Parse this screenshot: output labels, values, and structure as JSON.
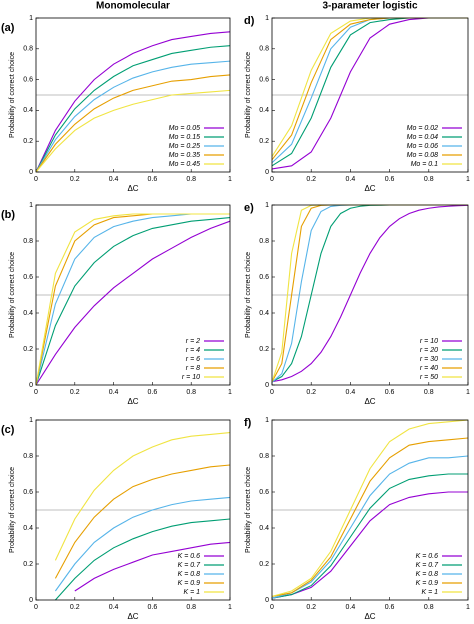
{
  "headers": [
    "Monomolecular",
    "3-parameter logistic"
  ],
  "chart_data": [
    {
      "type": "line",
      "label": "(a)",
      "xlabel": "ΔC",
      "ylabel": "Probability of correct choice",
      "xlim": [
        0,
        1
      ],
      "ylim": [
        0,
        1
      ],
      "xticks": [
        0,
        0.2,
        0.4,
        0.6,
        0.8,
        1
      ],
      "yticks": [
        0,
        0.2,
        0.4,
        0.6,
        0.8,
        1
      ],
      "hline": 0.5,
      "legend": "lower right",
      "x": [
        0,
        0.1,
        0.2,
        0.3,
        0.4,
        0.5,
        0.6,
        0.7,
        0.8,
        0.9,
        1
      ],
      "series": [
        {
          "name": "Mo = 0.05",
          "color": "#9400d3",
          "values": [
            0,
            0.27,
            0.46,
            0.6,
            0.7,
            0.77,
            0.82,
            0.86,
            0.88,
            0.9,
            0.91
          ]
        },
        {
          "name": "Mo = 0.15",
          "color": "#009e73",
          "values": [
            0,
            0.24,
            0.41,
            0.53,
            0.62,
            0.69,
            0.73,
            0.77,
            0.79,
            0.81,
            0.82
          ]
        },
        {
          "name": "Mo = 0.25",
          "color": "#56b4e9",
          "values": [
            0,
            0.21,
            0.36,
            0.47,
            0.55,
            0.61,
            0.65,
            0.68,
            0.7,
            0.71,
            0.72
          ]
        },
        {
          "name": "Mo = 0.35",
          "color": "#e69f00",
          "values": [
            0,
            0.18,
            0.31,
            0.41,
            0.48,
            0.53,
            0.56,
            0.59,
            0.6,
            0.62,
            0.63
          ]
        },
        {
          "name": "Mo = 0.45",
          "color": "#f0e442",
          "values": [
            0,
            0.15,
            0.27,
            0.35,
            0.4,
            0.44,
            0.47,
            0.5,
            0.51,
            0.52,
            0.53
          ]
        }
      ]
    },
    {
      "type": "line",
      "label": "(b)",
      "xlabel": "ΔC",
      "ylabel": "Probability of correct choice",
      "xlim": [
        0,
        1
      ],
      "ylim": [
        0,
        1
      ],
      "xticks": [
        0,
        0.2,
        0.4,
        0.6,
        0.8,
        1
      ],
      "yticks": [
        0,
        0.2,
        0.4,
        0.6,
        0.8,
        1
      ],
      "hline": 0.5,
      "legend": "lower right",
      "x": [
        0,
        0.1,
        0.2,
        0.3,
        0.4,
        0.5,
        0.6,
        0.7,
        0.8,
        0.9,
        1
      ],
      "series": [
        {
          "name": "r = 2",
          "color": "#9400d3",
          "values": [
            0,
            0.17,
            0.32,
            0.44,
            0.54,
            0.62,
            0.7,
            0.76,
            0.82,
            0.87,
            0.91
          ]
        },
        {
          "name": "r = 4",
          "color": "#009e73",
          "values": [
            0,
            0.33,
            0.55,
            0.68,
            0.77,
            0.83,
            0.87,
            0.89,
            0.91,
            0.92,
            0.93
          ]
        },
        {
          "name": "r = 6",
          "color": "#56b4e9",
          "values": [
            0,
            0.45,
            0.7,
            0.82,
            0.88,
            0.91,
            0.93,
            0.94,
            0.95,
            0.95,
            0.95
          ]
        },
        {
          "name": "r = 8",
          "color": "#e69f00",
          "values": [
            0,
            0.55,
            0.8,
            0.89,
            0.93,
            0.94,
            0.95,
            0.95,
            0.95,
            0.95,
            0.95
          ]
        },
        {
          "name": "r = 10",
          "color": "#f0e442",
          "values": [
            0,
            0.62,
            0.85,
            0.92,
            0.94,
            0.95,
            0.95,
            0.95,
            0.95,
            0.95,
            0.95
          ]
        }
      ]
    },
    {
      "type": "line",
      "label": "(c)",
      "xlabel": "ΔC",
      "ylabel": "Probability of correct choice",
      "xlim": [
        0,
        1
      ],
      "ylim": [
        0,
        1
      ],
      "xticks": [
        0,
        0.2,
        0.4,
        0.6,
        0.8,
        1
      ],
      "yticks": [
        0,
        0.2,
        0.4,
        0.6,
        0.8,
        1
      ],
      "hline": 0.5,
      "legend": "lower right",
      "x": [
        0,
        0.1,
        0.2,
        0.3,
        0.4,
        0.5,
        0.6,
        0.7,
        0.8,
        0.9,
        1
      ],
      "series": [
        {
          "name": "K = 0.6",
          "color": "#9400d3",
          "values": [
            null,
            null,
            0.05,
            0.12,
            0.17,
            0.21,
            0.25,
            0.27,
            0.29,
            0.31,
            0.32
          ]
        },
        {
          "name": "K = 0.7",
          "color": "#009e73",
          "values": [
            null,
            0,
            0.12,
            0.22,
            0.29,
            0.34,
            0.38,
            0.41,
            0.43,
            0.44,
            0.45
          ]
        },
        {
          "name": "K = 0.8",
          "color": "#56b4e9",
          "values": [
            null,
            0.05,
            0.2,
            0.32,
            0.4,
            0.46,
            0.5,
            0.53,
            0.55,
            0.56,
            0.57
          ]
        },
        {
          "name": "K = 0.9",
          "color": "#e69f00",
          "values": [
            null,
            0.12,
            0.32,
            0.46,
            0.56,
            0.63,
            0.67,
            0.7,
            0.72,
            0.74,
            0.75
          ]
        },
        {
          "name": "K = 1",
          "color": "#f0e442",
          "values": [
            null,
            0.22,
            0.45,
            0.61,
            0.72,
            0.8,
            0.85,
            0.89,
            0.91,
            0.92,
            0.93
          ]
        }
      ]
    },
    {
      "type": "line",
      "label": "d)",
      "xlabel": "ΔC",
      "ylabel": "Probability of correct choice",
      "xlim": [
        0,
        1
      ],
      "ylim": [
        0,
        1
      ],
      "xticks": [
        0,
        0.2,
        0.4,
        0.6,
        0.8,
        1
      ],
      "yticks": [
        0,
        0.2,
        0.4,
        0.6,
        0.8,
        1
      ],
      "hline": 0.5,
      "legend": "lower right",
      "x": [
        0,
        0.1,
        0.2,
        0.3,
        0.4,
        0.5,
        0.6,
        0.7,
        0.8,
        0.9,
        1
      ],
      "series": [
        {
          "name": "Mo = 0.02",
          "color": "#9400d3",
          "values": [
            0.02,
            0.04,
            0.13,
            0.35,
            0.65,
            0.87,
            0.96,
            0.99,
            1,
            1,
            1
          ]
        },
        {
          "name": "Mo = 0.04",
          "color": "#009e73",
          "values": [
            0.04,
            0.12,
            0.35,
            0.68,
            0.89,
            0.97,
            0.99,
            1,
            1,
            1,
            1
          ]
        },
        {
          "name": "Mo = 0.06",
          "color": "#56b4e9",
          "values": [
            0.06,
            0.18,
            0.48,
            0.8,
            0.94,
            0.99,
            1,
            1,
            1,
            1,
            1
          ]
        },
        {
          "name": "Mo = 0.08",
          "color": "#e69f00",
          "values": [
            0.08,
            0.24,
            0.58,
            0.86,
            0.96,
            0.99,
            1,
            1,
            1,
            1,
            1
          ]
        },
        {
          "name": "Mo = 0.1",
          "color": "#f0e442",
          "values": [
            0.1,
            0.3,
            0.66,
            0.9,
            0.98,
            1,
            1,
            1,
            1,
            1,
            1
          ]
        }
      ]
    },
    {
      "type": "line",
      "label": "e)",
      "xlabel": "ΔC",
      "ylabel": "Probability of correct choice",
      "xlim": [
        0,
        1
      ],
      "ylim": [
        0,
        1
      ],
      "xticks": [
        0,
        0.2,
        0.4,
        0.6,
        0.8,
        1
      ],
      "yticks": [
        0,
        0.2,
        0.4,
        0.6,
        0.8,
        1
      ],
      "hline": 0.5,
      "legend": "lower right",
      "x": [
        0,
        0.05,
        0.1,
        0.15,
        0.2,
        0.25,
        0.3,
        0.35,
        0.4,
        0.45,
        0.5,
        0.55,
        0.6,
        0.65,
        0.7,
        0.75,
        0.8,
        0.85,
        0.9,
        0.95,
        1
      ],
      "series": [
        {
          "name": "r = 10",
          "color": "#9400d3",
          "values": [
            0.018,
            0.029,
            0.047,
            0.076,
            0.119,
            0.182,
            0.269,
            0.378,
            0.5,
            0.622,
            0.731,
            0.818,
            0.881,
            0.924,
            0.953,
            0.971,
            0.982,
            0.989,
            0.993,
            0.996,
            0.998
          ]
        },
        {
          "name": "r = 20",
          "color": "#009e73",
          "values": [
            0.018,
            0.047,
            0.119,
            0.269,
            0.5,
            0.731,
            0.881,
            0.953,
            0.982,
            0.993,
            0.998,
            0.999,
            1,
            1,
            1,
            1,
            1,
            1,
            1,
            1,
            1
          ]
        },
        {
          "name": "r = 30",
          "color": "#56b4e9",
          "values": [
            0.015,
            0.063,
            0.231,
            0.574,
            0.858,
            0.964,
            0.992,
            0.998,
            1,
            1,
            1,
            1,
            1,
            1,
            1,
            1,
            1,
            1,
            1,
            1,
            1
          ]
        },
        {
          "name": "r = 40",
          "color": "#e69f00",
          "values": [
            0.018,
            0.119,
            0.5,
            0.881,
            0.982,
            0.998,
            1,
            1,
            1,
            1,
            1,
            1,
            1,
            1,
            1,
            1,
            1,
            1,
            1,
            1,
            1
          ]
        },
        {
          "name": "r = 50",
          "color": "#f0e442",
          "values": [
            0.018,
            0.182,
            0.731,
            0.971,
            0.998,
            1,
            1,
            1,
            1,
            1,
            1,
            1,
            1,
            1,
            1,
            1,
            1,
            1,
            1,
            1,
            1
          ]
        }
      ]
    },
    {
      "type": "line",
      "label": "f)",
      "xlabel": "ΔC",
      "ylabel": "Probability of correct choice",
      "xlim": [
        0,
        1
      ],
      "ylim": [
        0,
        1
      ],
      "xticks": [
        0,
        0.2,
        0.4,
        0.6,
        0.8,
        1
      ],
      "yticks": [
        0,
        0.2,
        0.4,
        0.6,
        0.8,
        1
      ],
      "hline": 0.5,
      "legend": "lower right",
      "x": [
        0,
        0.1,
        0.2,
        0.3,
        0.4,
        0.5,
        0.6,
        0.7,
        0.8,
        0.9,
        1
      ],
      "series": [
        {
          "name": "K = 0.6",
          "color": "#9400d3",
          "values": [
            0.01,
            0.03,
            0.07,
            0.16,
            0.3,
            0.44,
            0.53,
            0.57,
            0.59,
            0.6,
            0.6
          ]
        },
        {
          "name": "K = 0.7",
          "color": "#009e73",
          "values": [
            0.01,
            0.03,
            0.08,
            0.19,
            0.35,
            0.51,
            0.62,
            0.67,
            0.69,
            0.7,
            0.7
          ]
        },
        {
          "name": "K = 0.8",
          "color": "#56b4e9",
          "values": [
            0.01,
            0.04,
            0.1,
            0.22,
            0.4,
            0.58,
            0.7,
            0.76,
            0.79,
            0.79,
            0.8
          ]
        },
        {
          "name": "K = 0.9",
          "color": "#e69f00",
          "values": [
            0.02,
            0.04,
            0.11,
            0.24,
            0.45,
            0.66,
            0.79,
            0.86,
            0.88,
            0.89,
            0.9
          ]
        },
        {
          "name": "K = 1",
          "color": "#f0e442",
          "values": [
            0.02,
            0.05,
            0.12,
            0.27,
            0.5,
            0.73,
            0.88,
            0.95,
            0.98,
            0.99,
            1
          ]
        }
      ]
    }
  ]
}
